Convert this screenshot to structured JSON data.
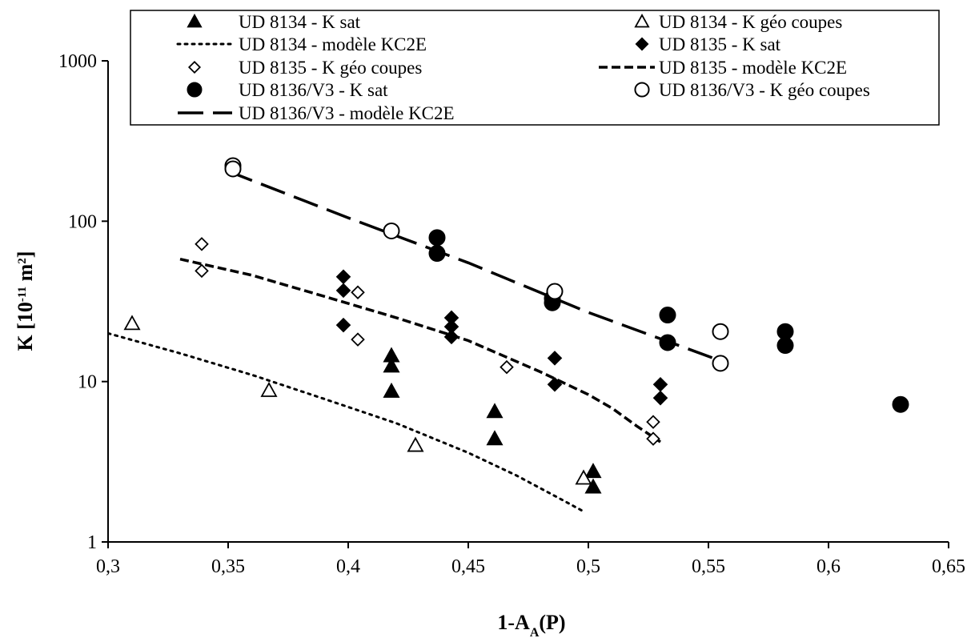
{
  "chart_data": {
    "type": "scatter",
    "x_axis": {
      "label_main": "1-A",
      "label_sub": "A",
      "label_tail": "(P)",
      "range": [
        0.3,
        0.65
      ],
      "ticks": [
        0.3,
        0.35,
        0.4,
        0.45,
        0.5,
        0.55,
        0.6,
        0.65
      ],
      "tick_labels": [
        "0,3",
        "0,35",
        "0,4",
        "0,45",
        "0,5",
        "0,55",
        "0,6",
        "0,65"
      ]
    },
    "y_axis": {
      "label_main": "K [10",
      "label_exp1": "-11",
      "label_mid": " m",
      "label_exp2": "2",
      "label_tail": "]",
      "scale": "log",
      "range": [
        1,
        1000
      ],
      "ticks": [
        1,
        10,
        100,
        1000
      ],
      "tick_labels": [
        "1",
        "10",
        "100",
        "1000"
      ]
    },
    "grid": false,
    "legend_position": "top",
    "series": [
      {
        "name": "UD 8134 - K sat",
        "kind": "points",
        "marker": "triangle-filled",
        "x": [
          0.418,
          0.418,
          0.418,
          0.461,
          0.461,
          0.502,
          0.502
        ],
        "y": [
          14.5,
          12.5,
          8.7,
          6.5,
          4.4,
          2.75,
          2.2
        ]
      },
      {
        "name": "UD 8134 - K géo coupes",
        "kind": "points",
        "marker": "triangle-open",
        "x": [
          0.31,
          0.367,
          0.428,
          0.498
        ],
        "y": [
          23,
          8.8,
          4.0,
          2.5
        ]
      },
      {
        "name": "UD 8134 - modèle KC2E",
        "kind": "line",
        "dash": "dotted",
        "x": [
          0.3,
          0.33,
          0.36,
          0.39,
          0.42,
          0.45,
          0.47,
          0.49,
          0.498
        ],
        "y": [
          20,
          15,
          11,
          7.8,
          5.5,
          3.6,
          2.6,
          1.8,
          1.55
        ]
      },
      {
        "name": "UD 8135 - K sat",
        "kind": "points",
        "marker": "diamond-filled",
        "x": [
          0.398,
          0.398,
          0.398,
          0.443,
          0.443,
          0.443,
          0.486,
          0.486,
          0.53,
          0.53
        ],
        "y": [
          45,
          37,
          22.5,
          25,
          22,
          19,
          14,
          9.6,
          9.6,
          7.9
        ]
      },
      {
        "name": "UD 8135 - K géo coupes",
        "kind": "points",
        "marker": "diamond-open",
        "x": [
          0.339,
          0.339,
          0.404,
          0.404,
          0.466,
          0.527,
          0.527
        ],
        "y": [
          72,
          49,
          36,
          18.3,
          12.3,
          5.6,
          4.4
        ]
      },
      {
        "name": "UD 8135 - modèle KC2E",
        "kind": "line",
        "dash": "dashed",
        "x": [
          0.33,
          0.36,
          0.39,
          0.42,
          0.45,
          0.48,
          0.5,
          0.51,
          0.52,
          0.53
        ],
        "y": [
          58,
          46,
          34,
          25,
          18,
          11.5,
          8.3,
          6.8,
          5.3,
          4.2
        ]
      },
      {
        "name": "UD 8136/V3 - K sat",
        "kind": "points",
        "marker": "circle-filled",
        "x": [
          0.437,
          0.437,
          0.485,
          0.485,
          0.533,
          0.533,
          0.582,
          0.582,
          0.63
        ],
        "y": [
          79,
          63,
          33,
          31,
          26,
          17.5,
          20.5,
          16.8,
          7.2
        ]
      },
      {
        "name": "UD 8136/V3 - K géo coupes",
        "kind": "points",
        "marker": "circle-open",
        "x": [
          0.352,
          0.352,
          0.418,
          0.486,
          0.555,
          0.555
        ],
        "y": [
          222,
          212,
          87,
          36.5,
          20.5,
          13
        ]
      },
      {
        "name": "UD 8136/V3 - modèle KC2E",
        "kind": "line",
        "dash": "longdash",
        "x": [
          0.35,
          0.4,
          0.45,
          0.5,
          0.555
        ],
        "y": [
          205,
          105,
          55,
          27,
          13.5
        ]
      }
    ]
  }
}
